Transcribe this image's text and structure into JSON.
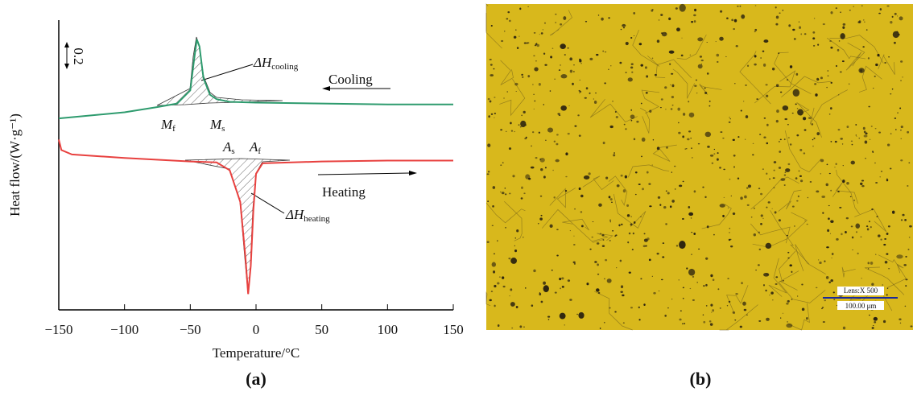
{
  "chart_data": {
    "type": "line",
    "x_label": "Temperature/°C",
    "y_label": "Heat flow/(W·g⁻¹)",
    "xlim": [
      -150,
      150
    ],
    "xticks": [
      {
        "value": -150,
        "label": "−150"
      },
      {
        "value": -100,
        "label": "−100"
      },
      {
        "value": -50,
        "label": "−50"
      },
      0,
      50,
      100,
      150
    ],
    "ylim": [
      0,
      3.3
    ],
    "series": [
      {
        "name": "Cooling",
        "color": "#2e9b6e",
        "x": [
          -150,
          -100,
          -75,
          -60,
          -50,
          -47,
          -45,
          -43,
          -40,
          -35,
          -30,
          -20,
          0,
          50,
          100,
          150
        ],
        "values": [
          2.18,
          2.25,
          2.31,
          2.35,
          2.5,
          2.86,
          3.08,
          3.0,
          2.64,
          2.45,
          2.4,
          2.37,
          2.36,
          2.35,
          2.34,
          2.34
        ]
      },
      {
        "name": "Heating",
        "color": "#e8413f",
        "x": [
          -150,
          -148,
          -140,
          -100,
          -50,
          -30,
          -20,
          -12,
          -8,
          -6,
          -4,
          -2,
          0,
          5,
          50,
          100,
          150
        ],
        "values": [
          1.94,
          1.82,
          1.77,
          1.73,
          1.69,
          1.68,
          1.59,
          1.23,
          0.59,
          0.18,
          0.5,
          1.14,
          1.55,
          1.67,
          1.69,
          1.7,
          1.7
        ]
      }
    ],
    "annotations": {
      "scale": "0.2",
      "dh_cooling": {
        "symbol": "ΔH",
        "subscript": "cooling"
      },
      "dh_heating": {
        "symbol": "ΔH",
        "subscript": "heating"
      },
      "mf": {
        "symbol": "M",
        "subscript": "f"
      },
      "ms": {
        "symbol": "M",
        "subscript": "s"
      },
      "as": {
        "symbol": "A",
        "subscript": "s"
      },
      "af": {
        "symbol": "A",
        "subscript": "f"
      }
    },
    "panel_label": "(a)"
  },
  "micrograph": {
    "lens": "Lens:X 500",
    "scale_bar": "100.00 μm",
    "panel_label": "(b)"
  }
}
